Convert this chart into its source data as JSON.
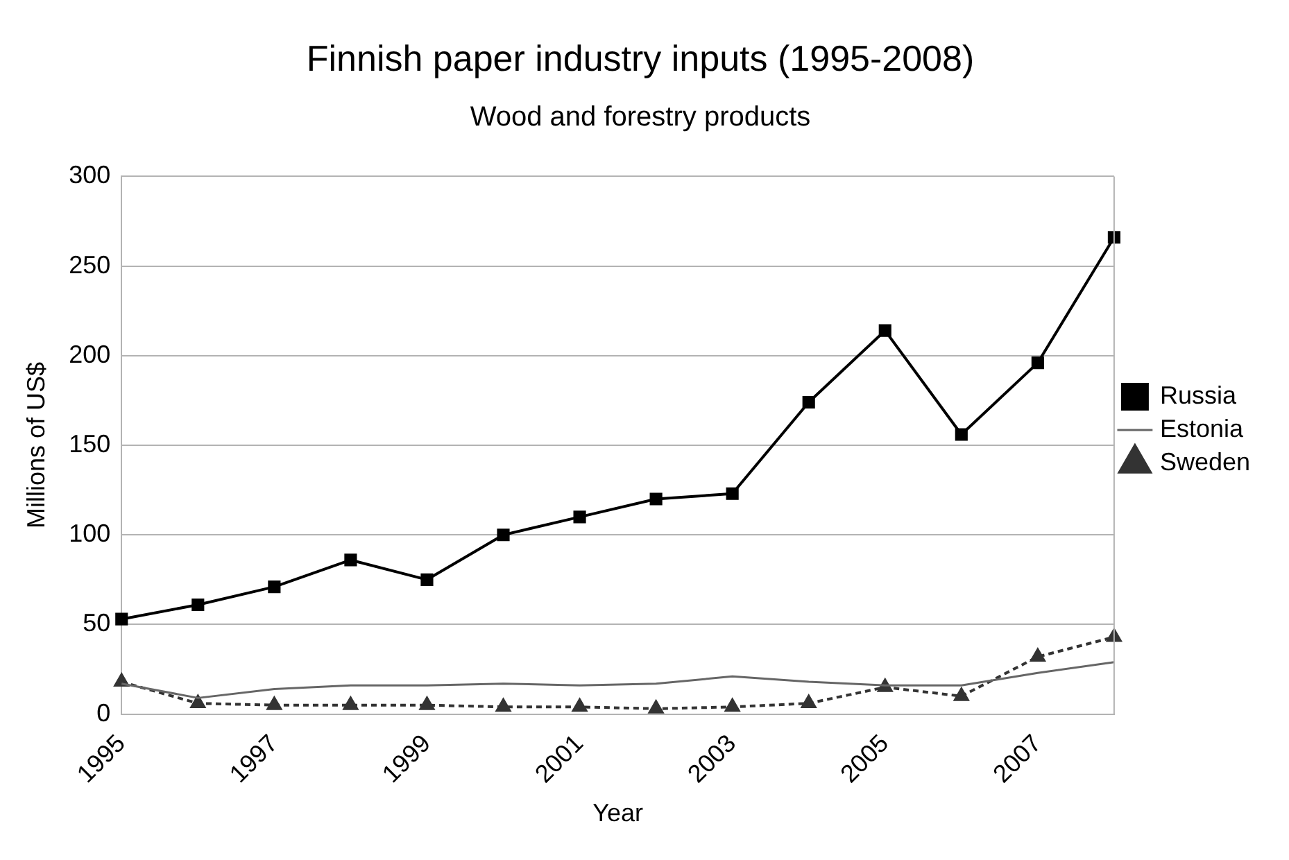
{
  "chart_data": {
    "type": "line",
    "title": "Finnish paper industry inputs (1995-2008)",
    "subtitle": "Wood and forestry products",
    "xlabel": "Year",
    "ylabel": "Millions of US$",
    "categories": [
      "1995",
      null,
      "1997",
      null,
      "1999",
      null,
      "2001",
      null,
      "2003",
      null,
      "2005",
      null,
      "2007",
      null
    ],
    "series": [
      {
        "name": "Russia",
        "color": "#000000",
        "marker": "square",
        "line_style": "solid",
        "values": [
          53,
          61,
          71,
          86,
          75,
          100,
          110,
          120,
          123,
          174,
          214,
          156,
          196,
          266
        ]
      },
      {
        "name": "Estonia",
        "color": "#666666",
        "marker": "none",
        "line_style": "solid",
        "values": [
          17,
          9,
          14,
          16,
          16,
          17,
          16,
          17,
          21,
          18,
          16,
          16,
          23,
          29
        ]
      },
      {
        "name": "Sweden",
        "color": "#333333",
        "marker": "triangle",
        "line_style": "dashed",
        "values": [
          18,
          6,
          5,
          5,
          5,
          4,
          4,
          3,
          4,
          6,
          15,
          10,
          32,
          43
        ]
      }
    ],
    "ylim": [
      0,
      300
    ],
    "yticks": [
      0,
      50,
      100,
      150,
      200,
      250,
      300
    ],
    "grid": "y",
    "legend": "right"
  }
}
